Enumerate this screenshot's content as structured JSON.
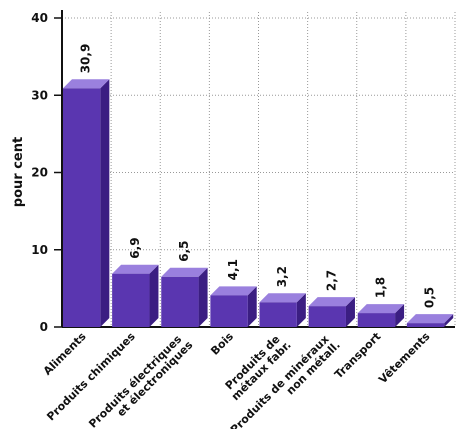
{
  "chart_data": {
    "type": "bar3d",
    "y_label": "pour cent",
    "categories": [
      "Aliments",
      "Produits chimiques",
      "Produits électriques\net électroniques",
      "Bois",
      "Produits de\nmétaux fabr.",
      "Produits de minéraux\nnon métall.",
      "Transport",
      "Vêtements"
    ],
    "values": [
      30.9,
      6.9,
      6.5,
      4.1,
      3.2,
      2.7,
      1.8,
      0.5
    ],
    "value_labels": [
      "30,9",
      "6,9",
      "6,5",
      "4,1",
      "3,2",
      "2,7",
      "1,8",
      "0,5"
    ],
    "color": "#5a36b0",
    "ylim": [
      0,
      40
    ],
    "yticks": [
      0,
      10,
      20,
      30,
      40
    ],
    "grid": true
  }
}
